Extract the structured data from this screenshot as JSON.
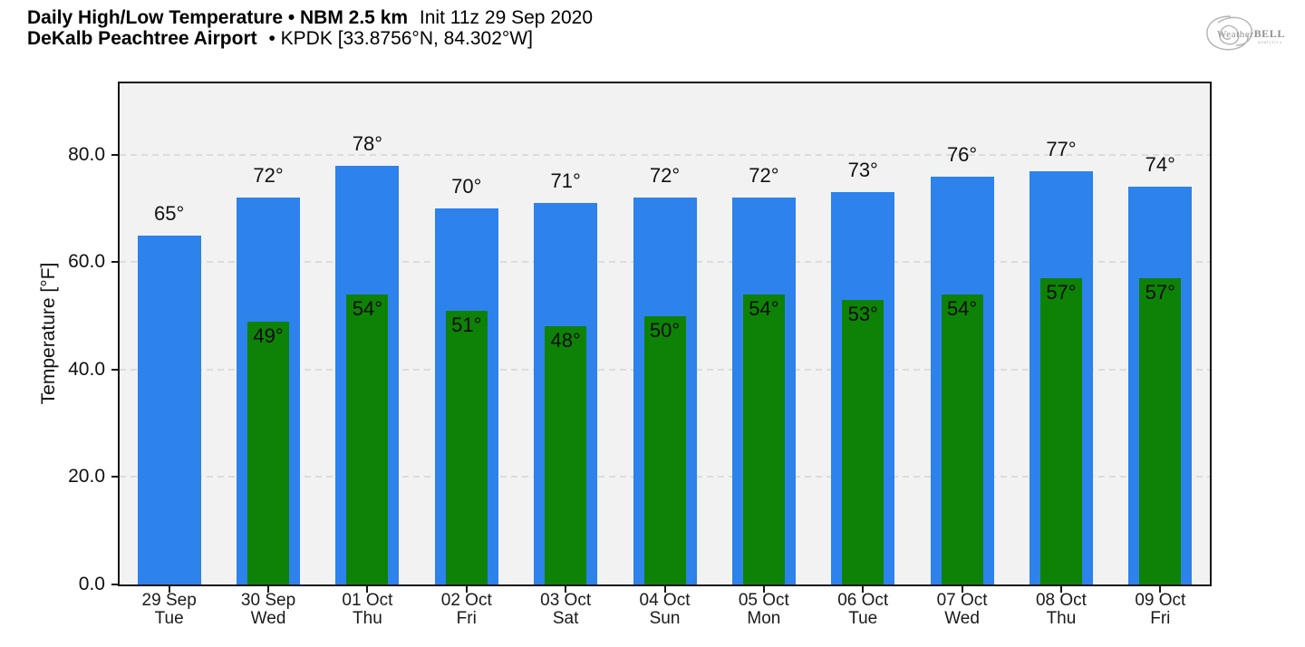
{
  "header": {
    "title_bold": "Daily High/Low Temperature • NBM 2.5 km",
    "title_regular": "Init 11z 29 Sep 2020",
    "subtitle_bold": "DeKalb Peachtree Airport",
    "subtitle_regular": "• KPDK [33.8756°N, 84.302°W]"
  },
  "logo": {
    "word_start": "Weather",
    "word_end": "BELL",
    "tagline": "analytics",
    "color": "#9a9a9a"
  },
  "chart_data": {
    "type": "bar",
    "title": "Daily High/Low Temperature • NBM 2.5 km",
    "subtitle": "DeKalb Peachtree Airport • KPDK [33.8756°N, 84.302°W]",
    "init": "Init 11z 29 Sep 2020",
    "xlabel": "",
    "ylabel": "Temperature [°F]",
    "ylim": [
      0,
      93.3
    ],
    "yticks": [
      0,
      20,
      40,
      60,
      80
    ],
    "ytick_labels": [
      "0.0",
      "20.0",
      "40.0",
      "60.0",
      "80.0"
    ],
    "grid": {
      "horizontal": true,
      "style": "dashed",
      "color": "#dcdcdc"
    },
    "legend": "none",
    "plot_bg": "#f2f2f2",
    "categories_date": [
      "29 Sep",
      "30 Sep",
      "01 Oct",
      "02 Oct",
      "03 Oct",
      "04 Oct",
      "05 Oct",
      "06 Oct",
      "07 Oct",
      "08 Oct",
      "09 Oct"
    ],
    "categories_day": [
      "Tue",
      "Wed",
      "Thu",
      "Fri",
      "Sat",
      "Sun",
      "Mon",
      "Tue",
      "Wed",
      "Thu",
      "Fri"
    ],
    "series": [
      {
        "name": "High",
        "color": "#2d82ec",
        "values": [
          65,
          72,
          78,
          70,
          71,
          72,
          72,
          73,
          76,
          77,
          74
        ],
        "labels": [
          "65°",
          "72°",
          "78°",
          "70°",
          "71°",
          "72°",
          "72°",
          "73°",
          "76°",
          "77°",
          "74°"
        ]
      },
      {
        "name": "Low",
        "color": "#0e8206",
        "values": [
          null,
          49,
          54,
          51,
          48,
          50,
          54,
          53,
          54,
          57,
          57
        ],
        "labels": [
          null,
          "49°",
          "54°",
          "51°",
          "48°",
          "50°",
          "54°",
          "53°",
          "54°",
          "57°",
          "57°"
        ]
      }
    ]
  }
}
